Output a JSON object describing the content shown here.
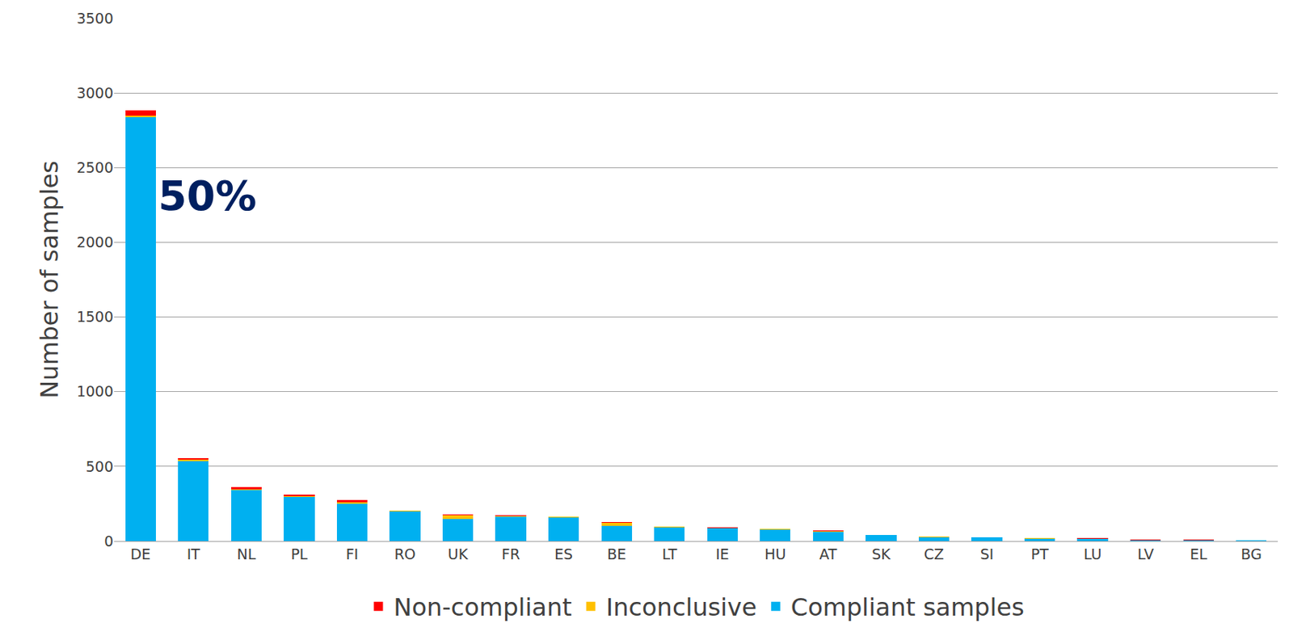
{
  "chart_data": {
    "type": "bar",
    "stacked": true,
    "y_label": "Number of samples",
    "categories": [
      "DE",
      "IT",
      "NL",
      "PL",
      "FI",
      "RO",
      "UK",
      "FR",
      "ES",
      "BE",
      "LT",
      "IE",
      "HU",
      "AT",
      "SK",
      "CZ",
      "SI",
      "PT",
      "LU",
      "LV",
      "EL",
      "BG"
    ],
    "series": [
      {
        "name": "Compliant samples",
        "color": "#00B0F0",
        "values": [
          2840,
          535,
          340,
          295,
          250,
          198,
          148,
          165,
          160,
          100,
          93,
          88,
          78,
          62,
          39,
          27,
          27,
          16,
          16,
          5,
          7,
          3
        ]
      },
      {
        "name": "Inconclusive",
        "color": "#FFC000",
        "values": [
          10,
          10,
          5,
          8,
          12,
          4,
          25,
          3,
          1,
          22,
          2,
          1,
          1,
          3,
          0,
          2,
          0,
          4,
          1,
          1,
          0,
          0
        ]
      },
      {
        "name": "Non-compliant",
        "color": "#FF0000",
        "values": [
          35,
          10,
          15,
          7,
          13,
          3,
          4,
          7,
          1,
          3,
          3,
          1,
          1,
          7,
          1,
          1,
          0,
          2,
          1,
          6,
          1,
          0
        ]
      }
    ],
    "annotations": [
      "50%"
    ],
    "ylim": [
      0,
      3500
    ],
    "yticks": [
      0,
      500,
      1000,
      1500,
      2000,
      2500,
      3000,
      3500
    ],
    "grid": true,
    "legend": "bottom"
  }
}
